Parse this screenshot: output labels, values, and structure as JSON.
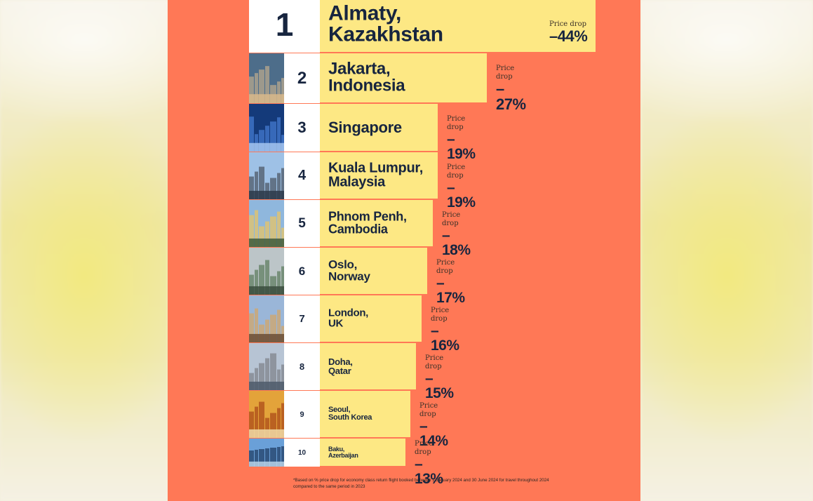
{
  "footnote": "*Based on % price drop for economy class return flight booked between 1 January 2024 and 30 June 2024 for travel throughout 2024 compared to the same period in 2023",
  "colors": {
    "panel": "#ff7856",
    "bar": "#fde884",
    "text": "#17253f",
    "rank_bg": "#ffffff"
  },
  "chart_data": {
    "type": "bar",
    "orientation": "horizontal",
    "value_label": "Price drop",
    "categories": [
      [
        "Almaty,",
        "Kazakhstan"
      ],
      [
        "Jakarta,",
        "Indonesia"
      ],
      [
        "Singapore"
      ],
      [
        "Kuala Lumpur,",
        "Malaysia"
      ],
      [
        "Phnom Penh,",
        "Cambodia"
      ],
      [
        "Oslo,",
        "Norway"
      ],
      [
        "London,",
        "UK"
      ],
      [
        "Doha,",
        "Qatar"
      ],
      [
        "Seoul,",
        "South Korea"
      ],
      [
        "Baku,",
        "Azerbaijan"
      ]
    ],
    "ranks": [
      "1",
      "2",
      "3",
      "4",
      "5",
      "6",
      "7",
      "8",
      "9",
      "10"
    ],
    "values": [
      -44,
      -27,
      -19,
      -19,
      -18,
      -17,
      -16,
      -15,
      -14,
      -13
    ],
    "value_labels": [
      "–44%",
      "–27%",
      "–19%",
      "–19%",
      "–18%",
      "–17%",
      "–16%",
      "–15%",
      "–14%",
      "–13%"
    ],
    "photo_icons": [
      "almaty-photo-icon",
      "jakarta-skyline-photo-icon",
      "singapore-marina-photo-icon",
      "kuala-lumpur-skyline-photo-icon",
      "phnom-penh-palace-photo-icon",
      "oslo-fjord-photo-icon",
      "london-street-photo-icon",
      "doha-skyline-photo-icon",
      "seoul-autumn-photo-icon",
      "baku-flame-towers-photo-icon"
    ]
  }
}
